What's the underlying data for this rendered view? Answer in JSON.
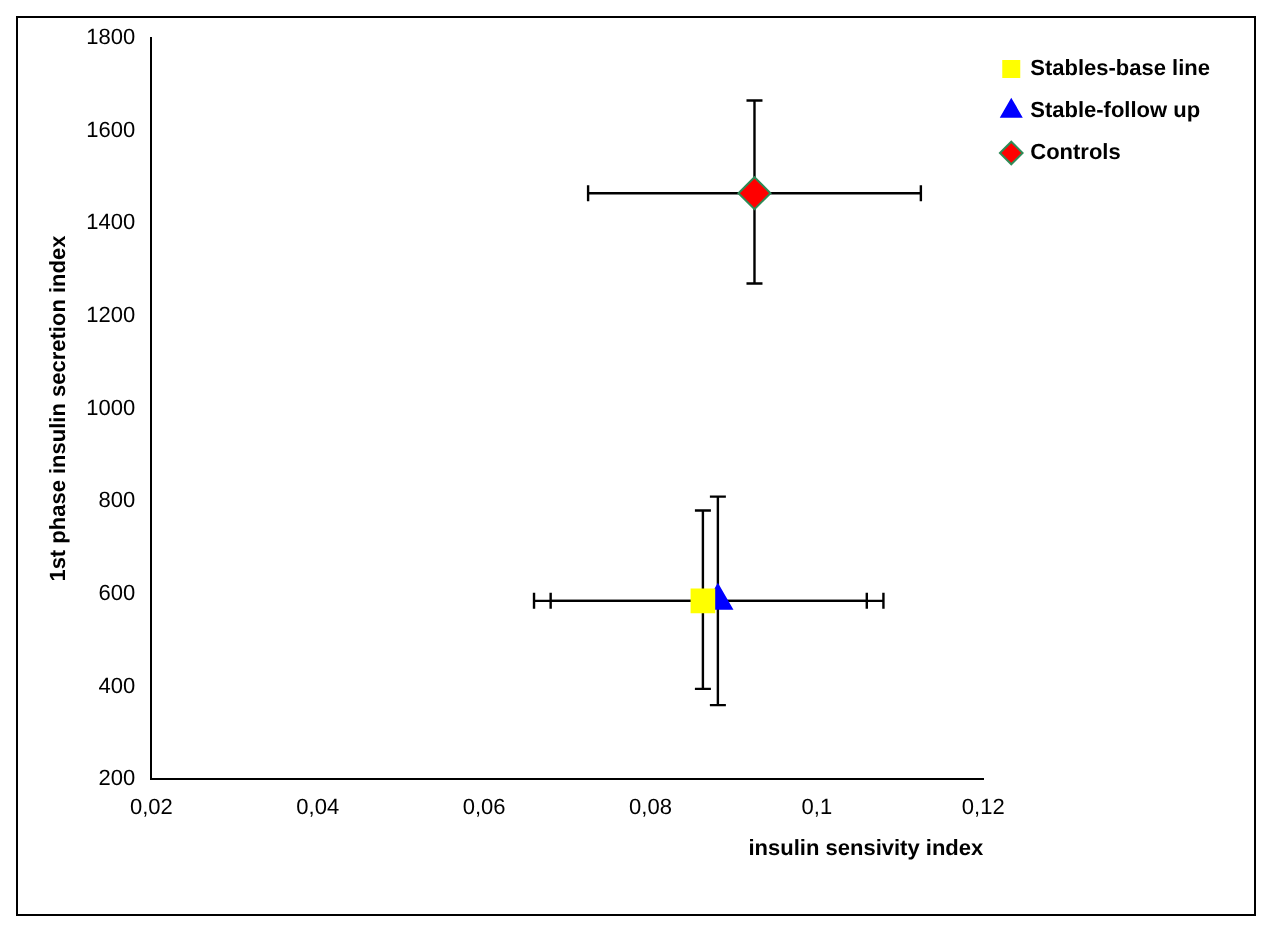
{
  "chart_data": {
    "type": "scatter",
    "xlabel": "insulin sensivity index",
    "ylabel": "1st phase insulin secretion index",
    "xlim": [
      0.02,
      0.12
    ],
    "xticks": [
      {
        "value": 0.02,
        "label": "0,02"
      },
      {
        "value": 0.04,
        "label": "0,04"
      },
      {
        "value": 0.06,
        "label": "0,06"
      },
      {
        "value": 0.08,
        "label": "0,08"
      },
      {
        "value": 0.1,
        "label": "0,1"
      },
      {
        "value": 0.12,
        "label": "0,12"
      }
    ],
    "ylim": [
      200,
      1800
    ],
    "yticks": [
      200,
      400,
      600,
      800,
      1000,
      1200,
      1400,
      1600,
      1800
    ],
    "grid": false,
    "legend": "top right",
    "series": [
      {
        "name": "Stables-base line",
        "color": "#ffff00",
        "marker": "square",
        "x": [
          0.0863
        ],
        "values": [
          585
        ],
        "errors": [
          [
            395,
            780
          ]
        ],
        "xerrors": [
          [
            0.066,
            0.106
          ]
        ]
      },
      {
        "name": "Stable-follow up",
        "color": "#0000ff",
        "marker": "triangle",
        "x": [
          0.0881
        ],
        "values": [
          585
        ],
        "errors": [
          [
            360,
            810
          ]
        ],
        "xerrors": [
          [
            0.068,
            0.108
          ]
        ]
      },
      {
        "name": "Controls",
        "color": "#ff0000",
        "marker": "diamond",
        "x": [
          0.0925
        ],
        "values": [
          1465
        ],
        "errors": [
          [
            1270,
            1665
          ]
        ],
        "xerrors": [
          [
            0.0725,
            0.1125
          ]
        ]
      }
    ]
  }
}
